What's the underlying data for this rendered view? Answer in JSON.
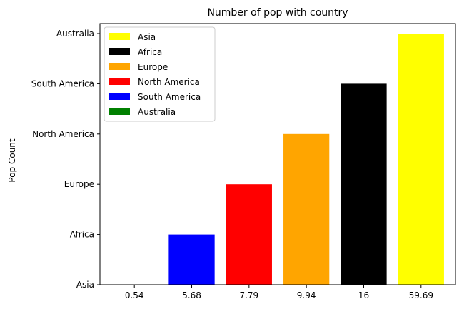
{
  "chart_data": {
    "type": "bar",
    "title": "Number of pop with country",
    "xlabel": "",
    "ylabel": "Pop Count",
    "categories": [
      "0.54",
      "5.68",
      "7.79",
      "9.94",
      "16",
      "59.69"
    ],
    "y_tick_labels": [
      "Asia",
      "Africa",
      "Europe",
      "North America",
      "South America",
      "Australia"
    ],
    "bars": [
      {
        "category": "0.54",
        "value": 0,
        "value_label": "Asia",
        "color": "#ffff00"
      },
      {
        "category": "5.68",
        "value": 1,
        "value_label": "Africa",
        "color": "#0000ff"
      },
      {
        "category": "7.79",
        "value": 2,
        "value_label": "Europe",
        "color": "#ff0000"
      },
      {
        "category": "9.94",
        "value": 3,
        "value_label": "North America",
        "color": "#ffa500"
      },
      {
        "category": "16",
        "value": 4,
        "value_label": "South America",
        "color": "#000000"
      },
      {
        "category": "59.69",
        "value": 5,
        "value_label": "Australia",
        "color": "#ffff00"
      }
    ],
    "ylim": [
      0,
      5
    ],
    "grid": false,
    "legend_position": "top-left",
    "legend": [
      {
        "label": "Asia",
        "color": "#ffff00"
      },
      {
        "label": "Africa",
        "color": "#000000"
      },
      {
        "label": "Europe",
        "color": "#ffa500"
      },
      {
        "label": "North America",
        "color": "#ff0000"
      },
      {
        "label": "South America",
        "color": "#0000ff"
      },
      {
        "label": "Australia",
        "color": "#008000"
      }
    ]
  }
}
